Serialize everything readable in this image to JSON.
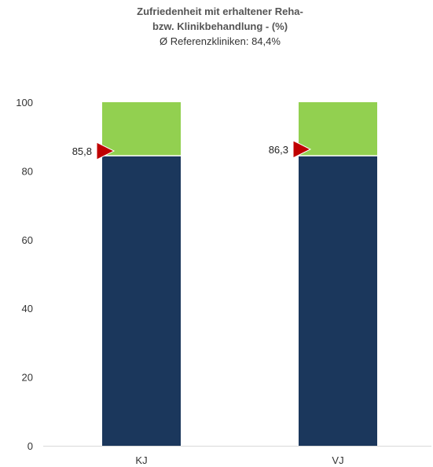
{
  "chart_data": {
    "type": "bar",
    "stacked": true,
    "title_line1": "Zufriedenheit mit erhaltener Reha-",
    "title_line2": "bzw. Klinikbehandlung - (%)",
    "subtitle": "Ø  Referenzkliniken: 84,4%",
    "categories": [
      "KJ",
      "VJ"
    ],
    "series": [
      {
        "values": [
          84.4,
          84.4
        ],
        "color": "#1b375c"
      },
      {
        "values": [
          15.6,
          15.6
        ],
        "color": "#92d050"
      }
    ],
    "markers": {
      "values": [
        85.8,
        86.3
      ],
      "labels": [
        "85,8",
        "86,3"
      ],
      "color": "#c00000"
    },
    "yticks": [
      0,
      20,
      40,
      60,
      80,
      100
    ],
    "ytick_labels": [
      "0",
      "20",
      "40",
      "60",
      "80",
      "100"
    ],
    "ylim": [
      0,
      100
    ],
    "grid": false,
    "legend": "none"
  }
}
